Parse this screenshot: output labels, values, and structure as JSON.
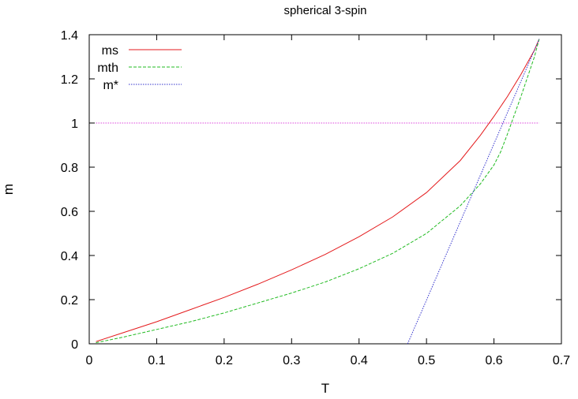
{
  "chart_data": {
    "type": "line",
    "title": "spherical 3-spin",
    "xlabel": "T",
    "ylabel": "m",
    "xlim": [
      0,
      0.7
    ],
    "ylim": [
      0,
      1.4
    ],
    "xticks": [
      "0",
      "0.1",
      "0.2",
      "0.3",
      "0.4",
      "0.5",
      "0.6",
      "0.7"
    ],
    "yticks": [
      "0",
      "0.2",
      "0.4",
      "0.6",
      "0.8",
      "1",
      "1.2",
      "1.4"
    ],
    "grid": false,
    "legend_position": "top-left",
    "series": [
      {
        "name": "ms",
        "color": "#e41a1c",
        "dash": "solid",
        "x": [
          0.01,
          0.05,
          0.1,
          0.15,
          0.2,
          0.25,
          0.3,
          0.35,
          0.4,
          0.45,
          0.5,
          0.55,
          0.58,
          0.6,
          0.62,
          0.64,
          0.66,
          0.667
        ],
        "y": [
          0.01,
          0.05,
          0.1,
          0.155,
          0.21,
          0.27,
          0.335,
          0.405,
          0.485,
          0.575,
          0.685,
          0.83,
          0.945,
          1.03,
          1.12,
          1.22,
          1.33,
          1.38
        ]
      },
      {
        "name": "mth",
        "color": "#22bb22",
        "dash": "dashed",
        "x": [
          0.01,
          0.05,
          0.1,
          0.15,
          0.2,
          0.25,
          0.3,
          0.35,
          0.4,
          0.45,
          0.5,
          0.55,
          0.58,
          0.6,
          0.61,
          0.62,
          0.64,
          0.66,
          0.667
        ],
        "y": [
          0.005,
          0.03,
          0.065,
          0.1,
          0.14,
          0.185,
          0.23,
          0.28,
          0.34,
          0.41,
          0.5,
          0.625,
          0.725,
          0.81,
          0.87,
          0.95,
          1.12,
          1.3,
          1.38
        ]
      },
      {
        "name": "m*",
        "color": "#3333cc",
        "dash": "dotted",
        "x": [
          0.472,
          0.667
        ],
        "y": [
          0,
          1.38
        ]
      }
    ],
    "reference_lines": [
      {
        "y": 1,
        "x_range": [
          0.01,
          0.667
        ],
        "color": "#dd44dd",
        "dash": "dotted"
      }
    ]
  }
}
